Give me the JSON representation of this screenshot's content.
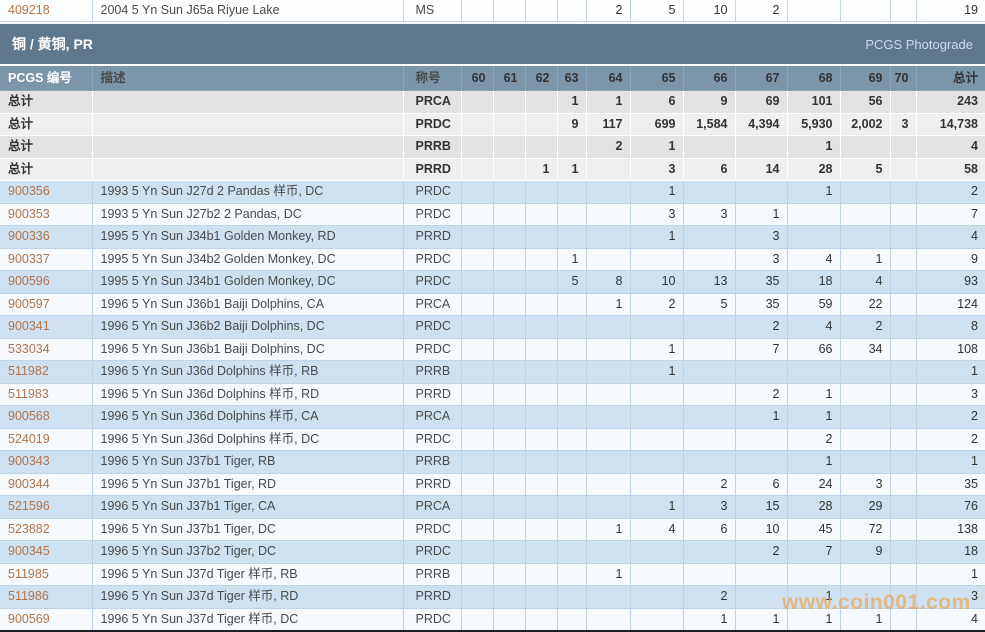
{
  "watermark": "www.coin001.com",
  "section": {
    "title": "铜 / 黄铜, PR",
    "badge": "PCGS Photograde"
  },
  "columns": {
    "id": "PCGS 编号",
    "desc": "描述",
    "desig": "称号",
    "grades": [
      "60",
      "61",
      "62",
      "63",
      "64",
      "65",
      "66",
      "67",
      "68",
      "69",
      "70"
    ],
    "total": "总计"
  },
  "top_row": {
    "id": "409218",
    "desc": "2004 5 Yn Sun J65a Riyue Lake",
    "desig": "MS",
    "values": [
      "",
      "",
      "",
      "",
      "2",
      "5",
      "10",
      "2",
      "",
      "",
      ""
    ],
    "total": "19"
  },
  "totals_rows": [
    {
      "label": "总计",
      "desc": "",
      "desig": "PRCA",
      "values": [
        "",
        "",
        "",
        "1",
        "1",
        "6",
        "9",
        "69",
        "101",
        "56",
        ""
      ],
      "total": "243"
    },
    {
      "label": "总计",
      "desc": "",
      "desig": "PRDC",
      "values": [
        "",
        "",
        "",
        "9",
        "117",
        "699",
        "1,584",
        "4,394",
        "5,930",
        "2,002",
        "3"
      ],
      "total": "14,738"
    },
    {
      "label": "总计",
      "desc": "",
      "desig": "PRRB",
      "values": [
        "",
        "",
        "",
        "",
        "2",
        "1",
        "",
        "",
        "1",
        "",
        ""
      ],
      "total": "4"
    },
    {
      "label": "总计",
      "desc": "",
      "desig": "PRRD",
      "values": [
        "",
        "",
        "1",
        "1",
        "",
        "3",
        "6",
        "14",
        "28",
        "5",
        ""
      ],
      "total": "58"
    }
  ],
  "rows": [
    {
      "id": "900356",
      "desc": "1993 5 Yn Sun J27d 2 Pandas 样币, DC",
      "desig": "PRDC",
      "values": [
        "",
        "",
        "",
        "",
        "",
        "1",
        "",
        "",
        "1",
        "",
        ""
      ],
      "total": "2"
    },
    {
      "id": "900353",
      "desc": "1993 5 Yn Sun J27b2 2 Pandas, DC",
      "desig": "PRDC",
      "values": [
        "",
        "",
        "",
        "",
        "",
        "3",
        "3",
        "1",
        "",
        "",
        ""
      ],
      "total": "7"
    },
    {
      "id": "900336",
      "desc": "1995 5 Yn Sun J34b1 Golden Monkey, RD",
      "desig": "PRRD",
      "values": [
        "",
        "",
        "",
        "",
        "",
        "1",
        "",
        "3",
        "",
        "",
        ""
      ],
      "total": "4"
    },
    {
      "id": "900337",
      "desc": "1995 5 Yn Sun J34b2 Golden Monkey, DC",
      "desig": "PRDC",
      "values": [
        "",
        "",
        "",
        "1",
        "",
        "",
        "",
        "3",
        "4",
        "1",
        ""
      ],
      "total": "9"
    },
    {
      "id": "900596",
      "desc": "1995 5 Yn Sun J34b1 Golden Monkey, DC",
      "desig": "PRDC",
      "values": [
        "",
        "",
        "",
        "5",
        "8",
        "10",
        "13",
        "35",
        "18",
        "4",
        ""
      ],
      "total": "93"
    },
    {
      "id": "900597",
      "desc": "1996 5 Yn Sun J36b1 Baiji Dolphins, CA",
      "desig": "PRCA",
      "values": [
        "",
        "",
        "",
        "",
        "1",
        "2",
        "5",
        "35",
        "59",
        "22",
        ""
      ],
      "total": "124"
    },
    {
      "id": "900341",
      "desc": "1996 5 Yn Sun J36b2 Baiji Dolphins, DC",
      "desig": "PRDC",
      "values": [
        "",
        "",
        "",
        "",
        "",
        "",
        "",
        "2",
        "4",
        "2",
        ""
      ],
      "total": "8"
    },
    {
      "id": "533034",
      "desc": "1996 5 Yn Sun J36b1 Baiji Dolphins, DC",
      "desig": "PRDC",
      "values": [
        "",
        "",
        "",
        "",
        "",
        "1",
        "",
        "7",
        "66",
        "34",
        ""
      ],
      "total": "108"
    },
    {
      "id": "511982",
      "desc": "1996 5 Yn Sun J36d Dolphins 样币, RB",
      "desig": "PRRB",
      "values": [
        "",
        "",
        "",
        "",
        "",
        "1",
        "",
        "",
        "",
        "",
        ""
      ],
      "total": "1"
    },
    {
      "id": "511983",
      "desc": "1996 5 Yn Sun J36d Dolphins 样币, RD",
      "desig": "PRRD",
      "values": [
        "",
        "",
        "",
        "",
        "",
        "",
        "",
        "2",
        "1",
        "",
        ""
      ],
      "total": "3"
    },
    {
      "id": "900568",
      "desc": "1996 5 Yn Sun J36d Dolphins 样币, CA",
      "desig": "PRCA",
      "values": [
        "",
        "",
        "",
        "",
        "",
        "",
        "",
        "1",
        "1",
        "",
        ""
      ],
      "total": "2"
    },
    {
      "id": "524019",
      "desc": "1996 5 Yn Sun J36d Dolphins 样币, DC",
      "desig": "PRDC",
      "values": [
        "",
        "",
        "",
        "",
        "",
        "",
        "",
        "",
        "2",
        "",
        ""
      ],
      "total": "2"
    },
    {
      "id": "900343",
      "desc": "1996 5 Yn Sun J37b1 Tiger, RB",
      "desig": "PRRB",
      "values": [
        "",
        "",
        "",
        "",
        "",
        "",
        "",
        "",
        "1",
        "",
        ""
      ],
      "total": "1"
    },
    {
      "id": "900344",
      "desc": "1996 5 Yn Sun J37b1 Tiger, RD",
      "desig": "PRRD",
      "values": [
        "",
        "",
        "",
        "",
        "",
        "",
        "2",
        "6",
        "24",
        "3",
        ""
      ],
      "total": "35"
    },
    {
      "id": "521596",
      "desc": "1996 5 Yn Sun J37b1 Tiger, CA",
      "desig": "PRCA",
      "values": [
        "",
        "",
        "",
        "",
        "",
        "1",
        "3",
        "15",
        "28",
        "29",
        ""
      ],
      "total": "76"
    },
    {
      "id": "523882",
      "desc": "1996 5 Yn Sun J37b1 Tiger, DC",
      "desig": "PRDC",
      "values": [
        "",
        "",
        "",
        "",
        "1",
        "4",
        "6",
        "10",
        "45",
        "72",
        ""
      ],
      "total": "138"
    },
    {
      "id": "900345",
      "desc": "1996 5 Yn Sun J37b2 Tiger, DC",
      "desig": "PRDC",
      "values": [
        "",
        "",
        "",
        "",
        "",
        "",
        "",
        "2",
        "7",
        "9",
        ""
      ],
      "total": "18"
    },
    {
      "id": "511985",
      "desc": "1996 5 Yn Sun J37d Tiger 样币, RB",
      "desig": "PRRB",
      "values": [
        "",
        "",
        "",
        "",
        "1",
        "",
        "",
        "",
        "",
        "",
        ""
      ],
      "total": "1"
    },
    {
      "id": "511986",
      "desc": "1996 5 Yn Sun J37d Tiger 样币, RD",
      "desig": "PRRD",
      "values": [
        "",
        "",
        "",
        "",
        "",
        "",
        "2",
        "",
        "1",
        "",
        ""
      ],
      "total": "3"
    },
    {
      "id": "900569",
      "desc": "1996 5 Yn Sun J37d Tiger 样币, DC",
      "desig": "PRDC",
      "values": [
        "",
        "",
        "",
        "",
        "",
        "",
        "1",
        "1",
        "1",
        "1",
        ""
      ],
      "total": "4"
    }
  ],
  "colors": {
    "link": "#b1754d",
    "section_bar": "#5e798d",
    "header_bg": "#7b95a9",
    "row_blue": "#cfe1f0",
    "row_white": "#f6fafd",
    "totals_gray": "#e3e3e3",
    "grid_line": "#bfd4e6",
    "watermark": "#f0a040"
  }
}
